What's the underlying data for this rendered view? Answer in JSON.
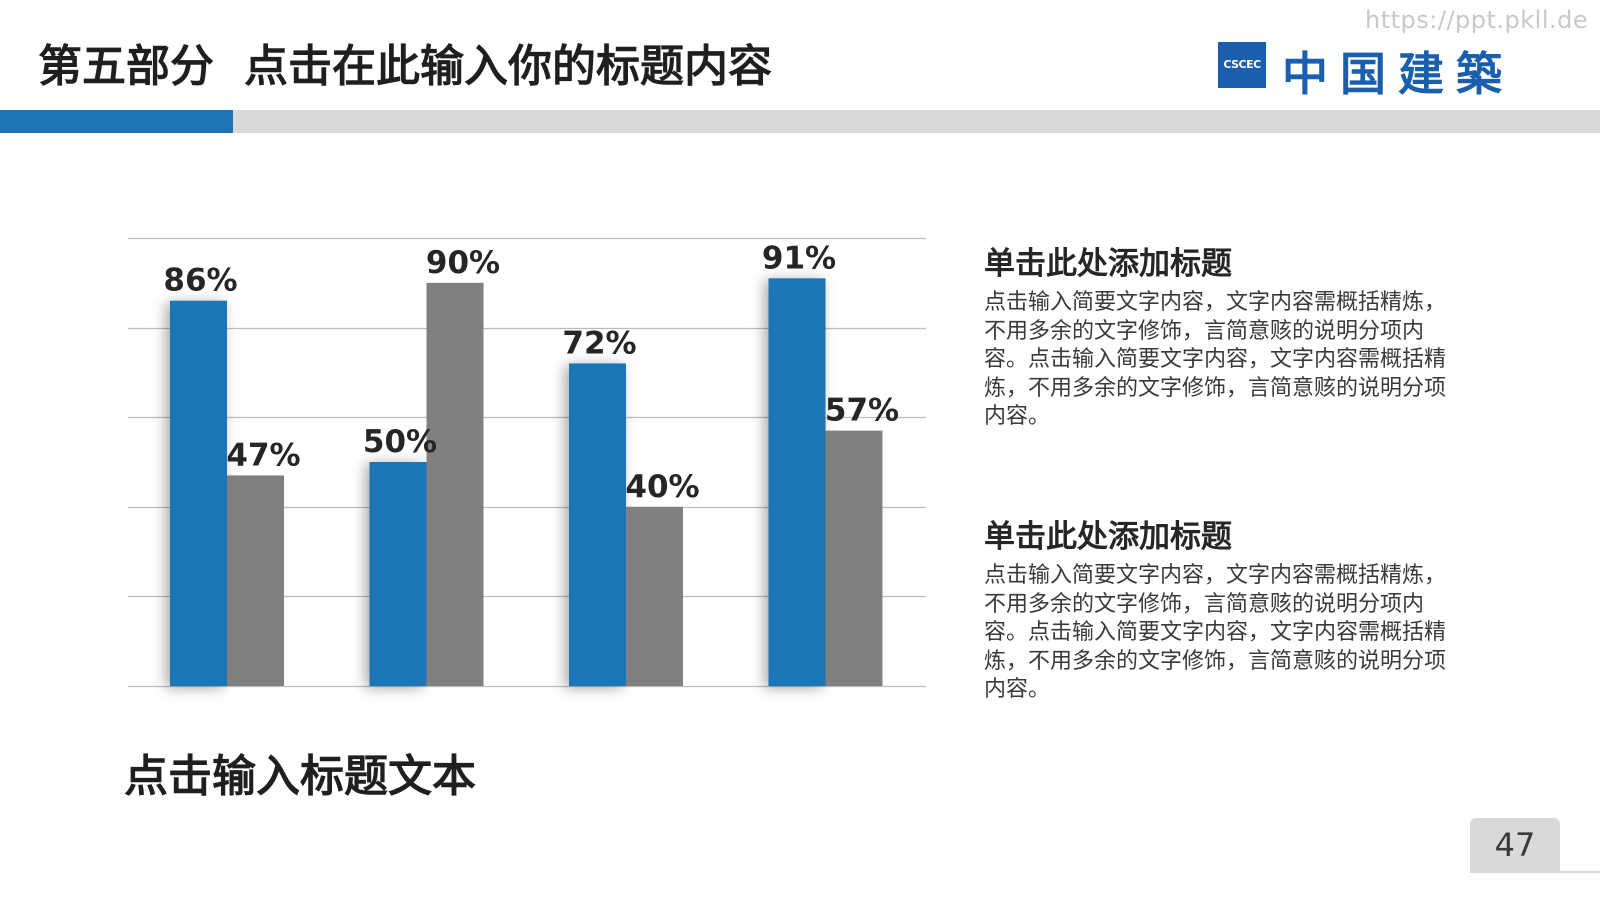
{
  "watermark": "https://ppt.pkll.de",
  "header": {
    "title_part": "第五部分",
    "title_text": "点击在此输入你的标题内容",
    "logo_emblem": "CSCEC",
    "logo_text": "中国建築"
  },
  "colors": {
    "accent_blue": "#1f74b5",
    "bar_gray": "#808080",
    "header_bar": "#d9d9d9",
    "logo_blue": "#1a5fae"
  },
  "chart_data": {
    "type": "bar",
    "categories": [
      "",
      "",
      "",
      ""
    ],
    "series": [
      {
        "values": [
          86,
          50,
          72,
          91
        ],
        "color": "#1f74b5"
      },
      {
        "values": [
          47,
          90,
          40,
          57
        ],
        "color": "#808080"
      }
    ],
    "labels": [
      [
        "86%",
        "50%",
        "72%",
        "91%"
      ],
      [
        "47%",
        "90%",
        "40%",
        "57%"
      ]
    ],
    "ylim": [
      0,
      100
    ],
    "grid": true,
    "legend": "none",
    "title": "",
    "xlabel": "",
    "ylabel": ""
  },
  "chart_caption": "点击输入标题文本",
  "blocks": [
    {
      "title": "单击此处添加标题",
      "body": "点击输入简要文字内容，文字内容需概括精炼，不用多余的文字修饰，言简意赅的说明分项内容。点击输入简要文字内容，文字内容需概括精炼，不用多余的文字修饰，言简意赅的说明分项内容。"
    },
    {
      "title": "单击此处添加标题",
      "body": "点击输入简要文字内容，文字内容需概括精炼，不用多余的文字修饰，言简意赅的说明分项内容。点击输入简要文字内容，文字内容需概括精炼，不用多余的文字修饰，言简意赅的说明分项内容。"
    }
  ],
  "page_number": "47"
}
